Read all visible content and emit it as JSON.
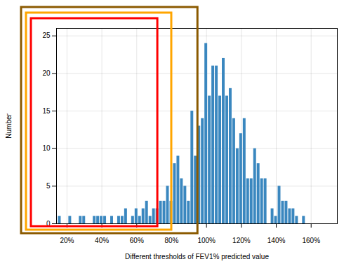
{
  "chart_data": {
    "type": "histogram",
    "xlabel": "Different thresholds of FEV1% predicted value",
    "ylabel": "Number",
    "color": "#3a87bf",
    "bins": [
      15,
      17,
      19,
      21,
      23,
      25,
      27,
      29,
      31,
      33,
      35,
      37,
      39,
      41,
      43,
      45,
      47,
      49,
      51,
      53,
      55,
      57,
      59,
      61,
      63,
      65,
      67,
      69,
      71,
      73,
      75,
      77,
      79,
      81,
      83,
      85,
      87,
      89,
      91,
      93,
      95,
      97,
      99,
      101,
      103,
      105,
      107,
      109,
      111,
      113,
      115,
      117,
      119,
      121,
      123,
      125,
      127,
      129,
      131,
      133,
      135,
      137,
      139,
      141,
      143,
      145,
      147,
      149,
      151,
      153,
      155,
      157
    ],
    "values": [
      1,
      0,
      0,
      1,
      0,
      0,
      1,
      1,
      0,
      0,
      1,
      1,
      1,
      1,
      0,
      1,
      0,
      1,
      1,
      2,
      0,
      1,
      2,
      1,
      2,
      3,
      1,
      2,
      2,
      3,
      3,
      5,
      3,
      8,
      9,
      6,
      5,
      3,
      15,
      9,
      13,
      14,
      24,
      17,
      21,
      21,
      17,
      22,
      17,
      18,
      14,
      10,
      12,
      14,
      6,
      6,
      10,
      8,
      6,
      6,
      0,
      2,
      1,
      5,
      3,
      3,
      2,
      2,
      1,
      0,
      1
    ],
    "xlim": [
      14,
      175
    ],
    "xticks": [
      {
        "value": 20,
        "label": "20%"
      },
      {
        "value": 40,
        "label": "40%"
      },
      {
        "value": 60,
        "label": "60%"
      },
      {
        "value": 80,
        "label": "80%"
      },
      {
        "value": 100,
        "label": "100%"
      },
      {
        "value": 120,
        "label": "120%"
      },
      {
        "value": 140,
        "label": "140%"
      },
      {
        "value": 160,
        "label": "160%"
      }
    ],
    "ylim": [
      0,
      26
    ],
    "yticks": [
      0,
      5,
      10,
      15,
      20,
      25
    ],
    "grid": true,
    "boxes": [
      {
        "x_end": 95,
        "color": "#8B5A00"
      },
      {
        "x_end": 80,
        "color": "#ffa500"
      },
      {
        "x_end": 72,
        "color": "#ff0000"
      }
    ]
  }
}
